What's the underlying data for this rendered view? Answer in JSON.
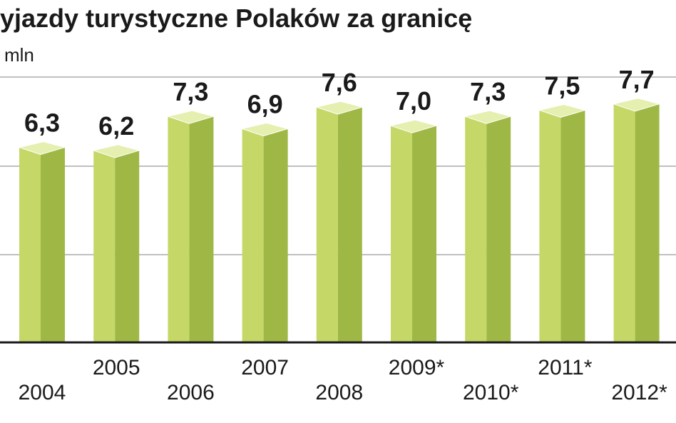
{
  "chart_data": {
    "type": "bar",
    "title": "yjazdy turystyczne Polaków za granicę",
    "ylabel": "mln",
    "categories": [
      "2004",
      "2005",
      "2006",
      "2007",
      "2008",
      "2009*",
      "2010*",
      "2011*",
      "2012*"
    ],
    "values": [
      6.3,
      6.2,
      7.3,
      6.9,
      7.6,
      7.0,
      7.3,
      7.5,
      7.7
    ],
    "value_labels": [
      "6,3",
      "6,2",
      "7,3",
      "6,9",
      "7,6",
      "7,0",
      "7,3",
      "7,5",
      "7,7"
    ],
    "grid": true,
    "colors": {
      "bar_front": "#c5d867",
      "bar_side": "#9fb845",
      "bar_top": "#e4efb0",
      "baseline": "#1a1a1a",
      "grid": "#9a9a9a",
      "text": "#1a1a1a"
    }
  }
}
